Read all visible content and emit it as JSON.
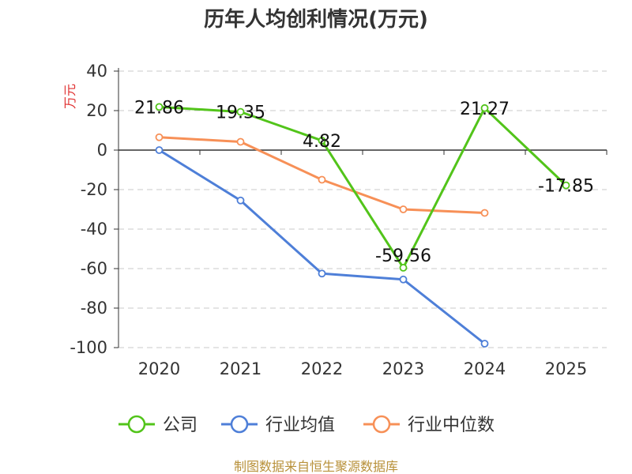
{
  "chart_data": {
    "type": "line",
    "title": "历年人均创利情况(万元)",
    "y_unit": "万元",
    "categories": [
      "2020",
      "2021",
      "2022",
      "2023",
      "2024",
      "2025"
    ],
    "ylim": [
      -100,
      40
    ],
    "yticks": [
      40,
      20,
      0,
      -20,
      -40,
      -60,
      -80,
      -100
    ],
    "grid": true,
    "legend_position": "bottom",
    "series": [
      {
        "name": "公司",
        "color": "#52c41a",
        "values": [
          21.86,
          19.35,
          4.82,
          -59.56,
          21.27,
          -17.85
        ],
        "labels": [
          "21.86",
          "19.35",
          "4.82",
          "-59.56",
          "21.27",
          "-17.85"
        ]
      },
      {
        "name": "行业均值",
        "color": "#4e7fd8",
        "values": [
          0,
          -25.5,
          -62.5,
          -65.5,
          -98,
          null
        ]
      },
      {
        "name": "行业中位数",
        "color": "#f79057",
        "values": [
          6.5,
          4.2,
          -15,
          -30,
          -31.8,
          null
        ]
      }
    ]
  },
  "source": "制图数据来自恒生聚源数据库"
}
